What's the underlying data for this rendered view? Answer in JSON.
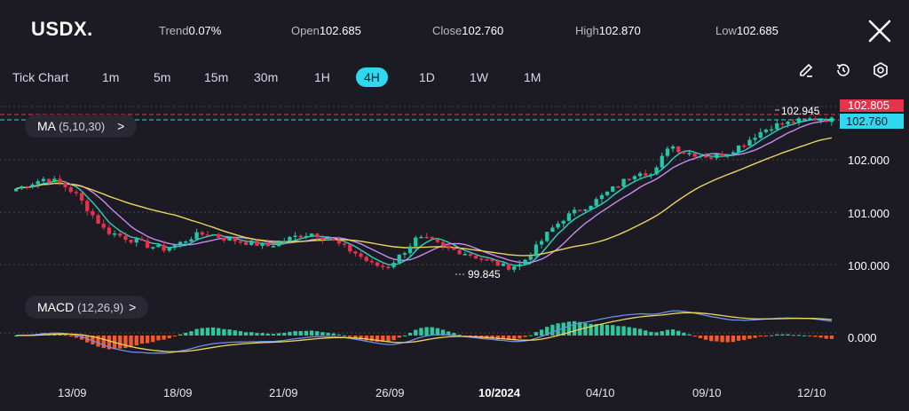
{
  "header": {
    "symbol": "USDX.",
    "trend_label": "Trend",
    "trend_value": "0.07%",
    "open_label": "Open",
    "open_value": "102.685",
    "close_label": "Close",
    "close_value": "102.760",
    "high_label": "High",
    "high_value": "102.870",
    "low_label": "Low",
    "low_value": "102.685"
  },
  "timeframes": [
    "Tick Chart",
    "1m",
    "5m",
    "15m",
    "30m",
    "1H",
    "4H",
    "1D",
    "1W",
    "1M"
  ],
  "active_timeframe": "4H",
  "tools": [
    "pencil-icon",
    "history-icon",
    "settings-icon"
  ],
  "indicators": {
    "ma_name": "MA",
    "ma_params": "(5,10,30)",
    "ma_chev": ">",
    "macd_name": "MACD",
    "macd_params": "(12,26,9)",
    "macd_chev": ">"
  },
  "price_axis": {
    "ticks": [
      "102.000",
      "101.000",
      "100.000"
    ],
    "tick_values": [
      102.0,
      101.0,
      100.0
    ],
    "last_price_label": "102.760",
    "high_tag_label": "102.805",
    "annot_high": "102.945",
    "annot_low": "99.845",
    "macd_zero_label": "0.000"
  },
  "date_axis": [
    "13/09",
    "18/09",
    "21/09",
    "26/09",
    "10/2024",
    "04/10",
    "09/10",
    "12/10"
  ],
  "colors": {
    "bull": "#22c7a5",
    "bear": "#e8314d",
    "ma5": "#2ad3c4",
    "ma10": "#c78bf0",
    "ma30": "#e9d55a",
    "macd_pos": "#2ec99a",
    "macd_neg": "#f25a2a",
    "dif": "#6c8fe8",
    "dea": "#e9d55a",
    "accent": "#2fd7f0",
    "last_tag": "#2fd7f0",
    "high_tag": "#e8314d"
  },
  "chart_data": {
    "type": "candlestick",
    "ylim": [
      99.7,
      103.0
    ],
    "close_path": [
      101.45,
      101.55,
      101.65,
      101.55,
      101.35,
      101.0,
      100.65,
      100.55,
      100.45,
      100.35,
      100.3,
      100.4,
      100.55,
      100.6,
      100.5,
      100.45,
      100.4,
      100.35,
      100.45,
      100.55,
      100.6,
      100.5,
      100.35,
      100.2,
      100.0,
      99.95,
      100.2,
      100.5,
      100.45,
      100.3,
      100.25,
      100.15,
      100.05,
      99.95,
      100.0,
      100.3,
      100.65,
      100.9,
      101.05,
      101.2,
      101.4,
      101.6,
      101.8,
      101.7,
      102.3,
      102.15,
      102.1,
      102.05,
      102.15,
      102.3,
      102.5,
      102.65,
      102.7,
      102.75,
      102.8,
      102.76
    ]
  }
}
